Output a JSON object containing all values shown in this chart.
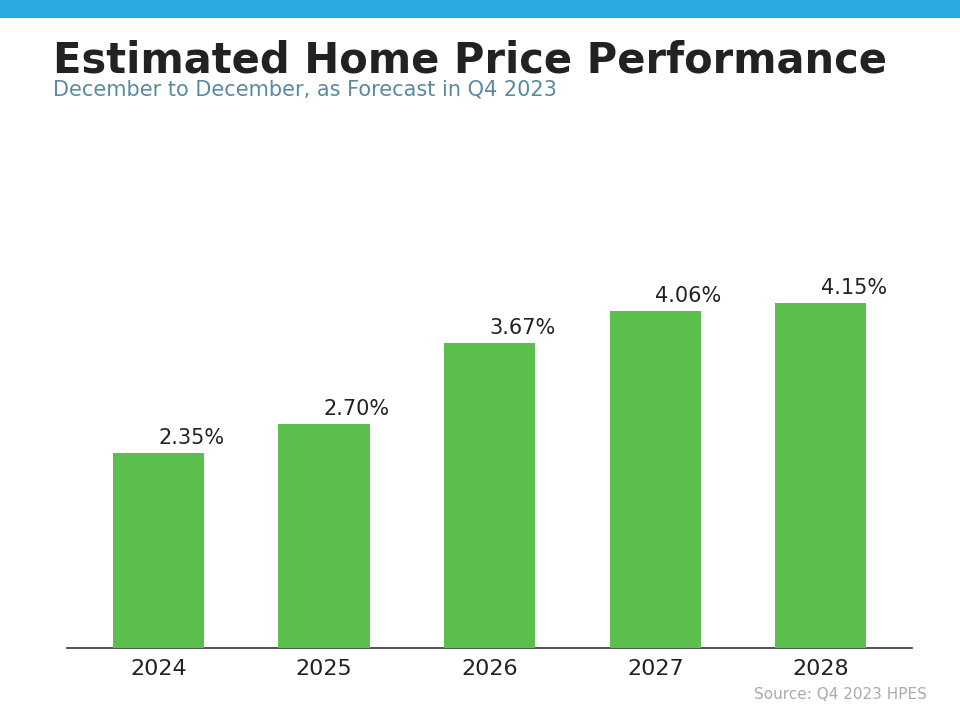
{
  "title": "Estimated Home Price Performance",
  "subtitle": "December to December, as Forecast in Q4 2023",
  "source": "Source: Q4 2023 HPES",
  "categories": [
    "2024",
    "2025",
    "2026",
    "2027",
    "2028"
  ],
  "values": [
    2.35,
    2.7,
    3.67,
    4.06,
    4.15
  ],
  "labels": [
    "2.35%",
    "2.70%",
    "3.67%",
    "4.06%",
    "4.15%"
  ],
  "bar_color": "#5bbf4e",
  "background_color": "#ffffff",
  "top_bar_color": "#29abe2",
  "title_color": "#222222",
  "subtitle_color": "#5a8a9f",
  "source_color": "#aaaaaa",
  "label_color": "#222222",
  "tick_color": "#222222",
  "ylim": [
    0,
    5.2
  ],
  "title_fontsize": 30,
  "subtitle_fontsize": 15,
  "label_fontsize": 15,
  "tick_fontsize": 16,
  "source_fontsize": 11
}
